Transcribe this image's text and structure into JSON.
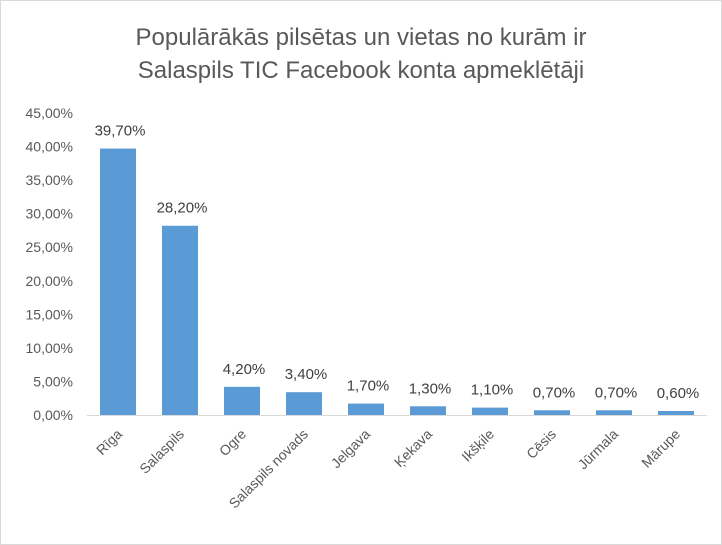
{
  "chart_data": {
    "type": "bar",
    "title_lines": [
      "Populārākās pilsētas un vietas no kurām ir",
      "Salaspils TIC Facebook konta apmeklētāji"
    ],
    "categories": [
      "Rīga",
      "Salaspils",
      "Ogre",
      "Salaspils novads",
      "Jelgava",
      "Ķekava",
      "Ikšķile",
      "Cēsis",
      "Jūrmala",
      "Mārupe"
    ],
    "values": [
      39.7,
      28.2,
      4.2,
      3.4,
      1.7,
      1.3,
      1.1,
      0.7,
      0.7,
      0.6
    ],
    "data_labels": [
      "39,70%",
      "28,20%",
      "4,20%",
      "3,40%",
      "1,70%",
      "1,30%",
      "1,10%",
      "0,70%",
      "0,70%",
      "0,60%"
    ],
    "ylim": [
      0,
      45
    ],
    "yticks": [
      0,
      5,
      10,
      15,
      20,
      25,
      30,
      35,
      40,
      45
    ],
    "ytick_labels": [
      "0,00%",
      "5,00%",
      "10,00%",
      "15,00%",
      "20,00%",
      "25,00%",
      "30,00%",
      "35,00%",
      "40,00%",
      "45,00%"
    ],
    "bar_color": "#5b9bd5",
    "grid": false,
    "legend": "none"
  }
}
